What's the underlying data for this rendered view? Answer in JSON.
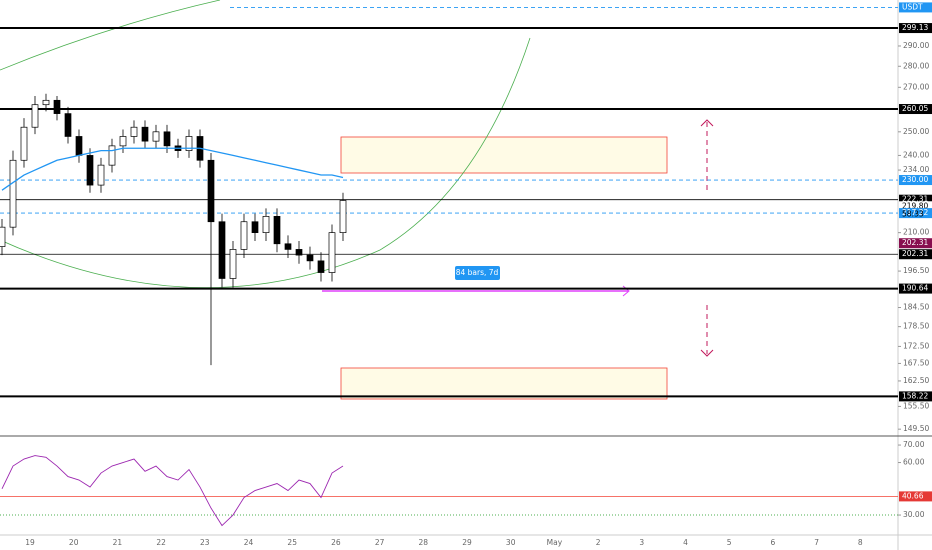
{
  "chart_data": {
    "type": "candlestick",
    "log_scale": true,
    "ylim": [
      148,
      314
    ],
    "yticks": [
      {
        "value": 290,
        "label": "290.00"
      },
      {
        "value": 280,
        "label": "280.00"
      },
      {
        "value": 270,
        "label": "270.00"
      },
      {
        "value": 250,
        "label": "250.00"
      },
      {
        "value": 240,
        "label": "240.00"
      },
      {
        "value": 234,
        "label": "234.00"
      },
      {
        "value": 210,
        "label": "210.00"
      },
      {
        "value": 196.5,
        "label": "196.50"
      },
      {
        "value": 184.5,
        "label": "184.50"
      },
      {
        "value": 178.5,
        "label": "178.50"
      },
      {
        "value": 172.5,
        "label": "172.50"
      },
      {
        "value": 167.5,
        "label": "167.50"
      },
      {
        "value": 162.5,
        "label": "162.50"
      },
      {
        "value": 155.5,
        "label": "155.50"
      },
      {
        "value": 149.5,
        "label": "149.50"
      }
    ],
    "levels": [
      {
        "value": 310,
        "label": "USDT",
        "style": "dash"
      },
      {
        "value": 299.13,
        "label": "299.13",
        "style": "thick"
      },
      {
        "value": 260.05,
        "label": "260.05",
        "style": "thick"
      },
      {
        "value": 230,
        "label": "230.00",
        "style": "dash"
      },
      {
        "value": 222.31,
        "label": "222.31",
        "style": "thin"
      },
      {
        "value": 219.8,
        "label": "219.80",
        "style": "plain"
      },
      {
        "value": 217.22,
        "label": "217.22",
        "style": "dash"
      },
      {
        "value": 202.31,
        "label": "202.31",
        "style": "thin"
      },
      {
        "value": 190.64,
        "label": "190.64",
        "style": "thick"
      },
      {
        "value": 158.22,
        "label": "158.22",
        "style": "thick"
      }
    ],
    "countdown": "58:33",
    "x_labels": [
      "19",
      "20",
      "21",
      "22",
      "23",
      "24",
      "25",
      "26",
      "27",
      "28",
      "29",
      "30",
      "May",
      "2",
      "3",
      "4",
      "5",
      "6",
      "7",
      "8"
    ],
    "open": [
      205,
      212,
      238,
      252,
      262,
      264,
      258,
      248,
      240,
      228,
      236,
      244,
      248,
      252,
      246,
      250,
      244,
      242,
      248,
      238,
      214,
      194,
      204,
      214,
      210,
      216,
      206,
      204,
      202,
      200,
      196,
      210
    ],
    "high": [
      215,
      242,
      256,
      266,
      267,
      266,
      261,
      251,
      243,
      239,
      247,
      251,
      255,
      255,
      253,
      253,
      247,
      251,
      251,
      241,
      217,
      207,
      217,
      217,
      219,
      219,
      209,
      207,
      205,
      203,
      213,
      225
    ],
    "low": [
      202,
      209,
      235,
      249,
      259,
      255,
      245,
      237,
      225,
      225,
      233,
      241,
      245,
      243,
      243,
      241,
      239,
      239,
      235,
      167,
      191,
      191,
      201,
      207,
      207,
      203,
      201,
      199,
      197,
      193,
      193,
      207
    ],
    "close": [
      212,
      238,
      252,
      262,
      264,
      258,
      248,
      240,
      228,
      236,
      244,
      248,
      252,
      246,
      250,
      244,
      242,
      248,
      238,
      214,
      194,
      204,
      214,
      210,
      216,
      206,
      204,
      202,
      200,
      196,
      210,
      222
    ],
    "ma_values": [
      226,
      229,
      232,
      234,
      236,
      238,
      239,
      240,
      241,
      242,
      242,
      243,
      243,
      243,
      243,
      243,
      243,
      243,
      243,
      242,
      241,
      240,
      239,
      238,
      237,
      236,
      235,
      234,
      233,
      232,
      232,
      231
    ],
    "ma_color": "#2196f3",
    "measure_label": "84 bars, 7d",
    "rsi": {
      "ylim": [
        18.6,
        74.6
      ],
      "yticks": [
        {
          "value": 70,
          "label": "70.00"
        },
        {
          "value": 60,
          "label": "60.00"
        },
        {
          "value": 30,
          "label": "30.00"
        }
      ],
      "values": [
        45,
        58,
        62,
        64,
        63,
        58,
        52,
        50,
        46,
        54,
        58,
        60,
        62,
        55,
        58,
        52,
        50,
        56,
        46,
        34,
        24,
        30,
        40,
        44,
        46,
        48,
        44,
        50,
        48,
        40,
        54,
        58
      ],
      "color": "#9c27b0",
      "level": {
        "value": 40.66,
        "label": "40.66"
      }
    }
  }
}
